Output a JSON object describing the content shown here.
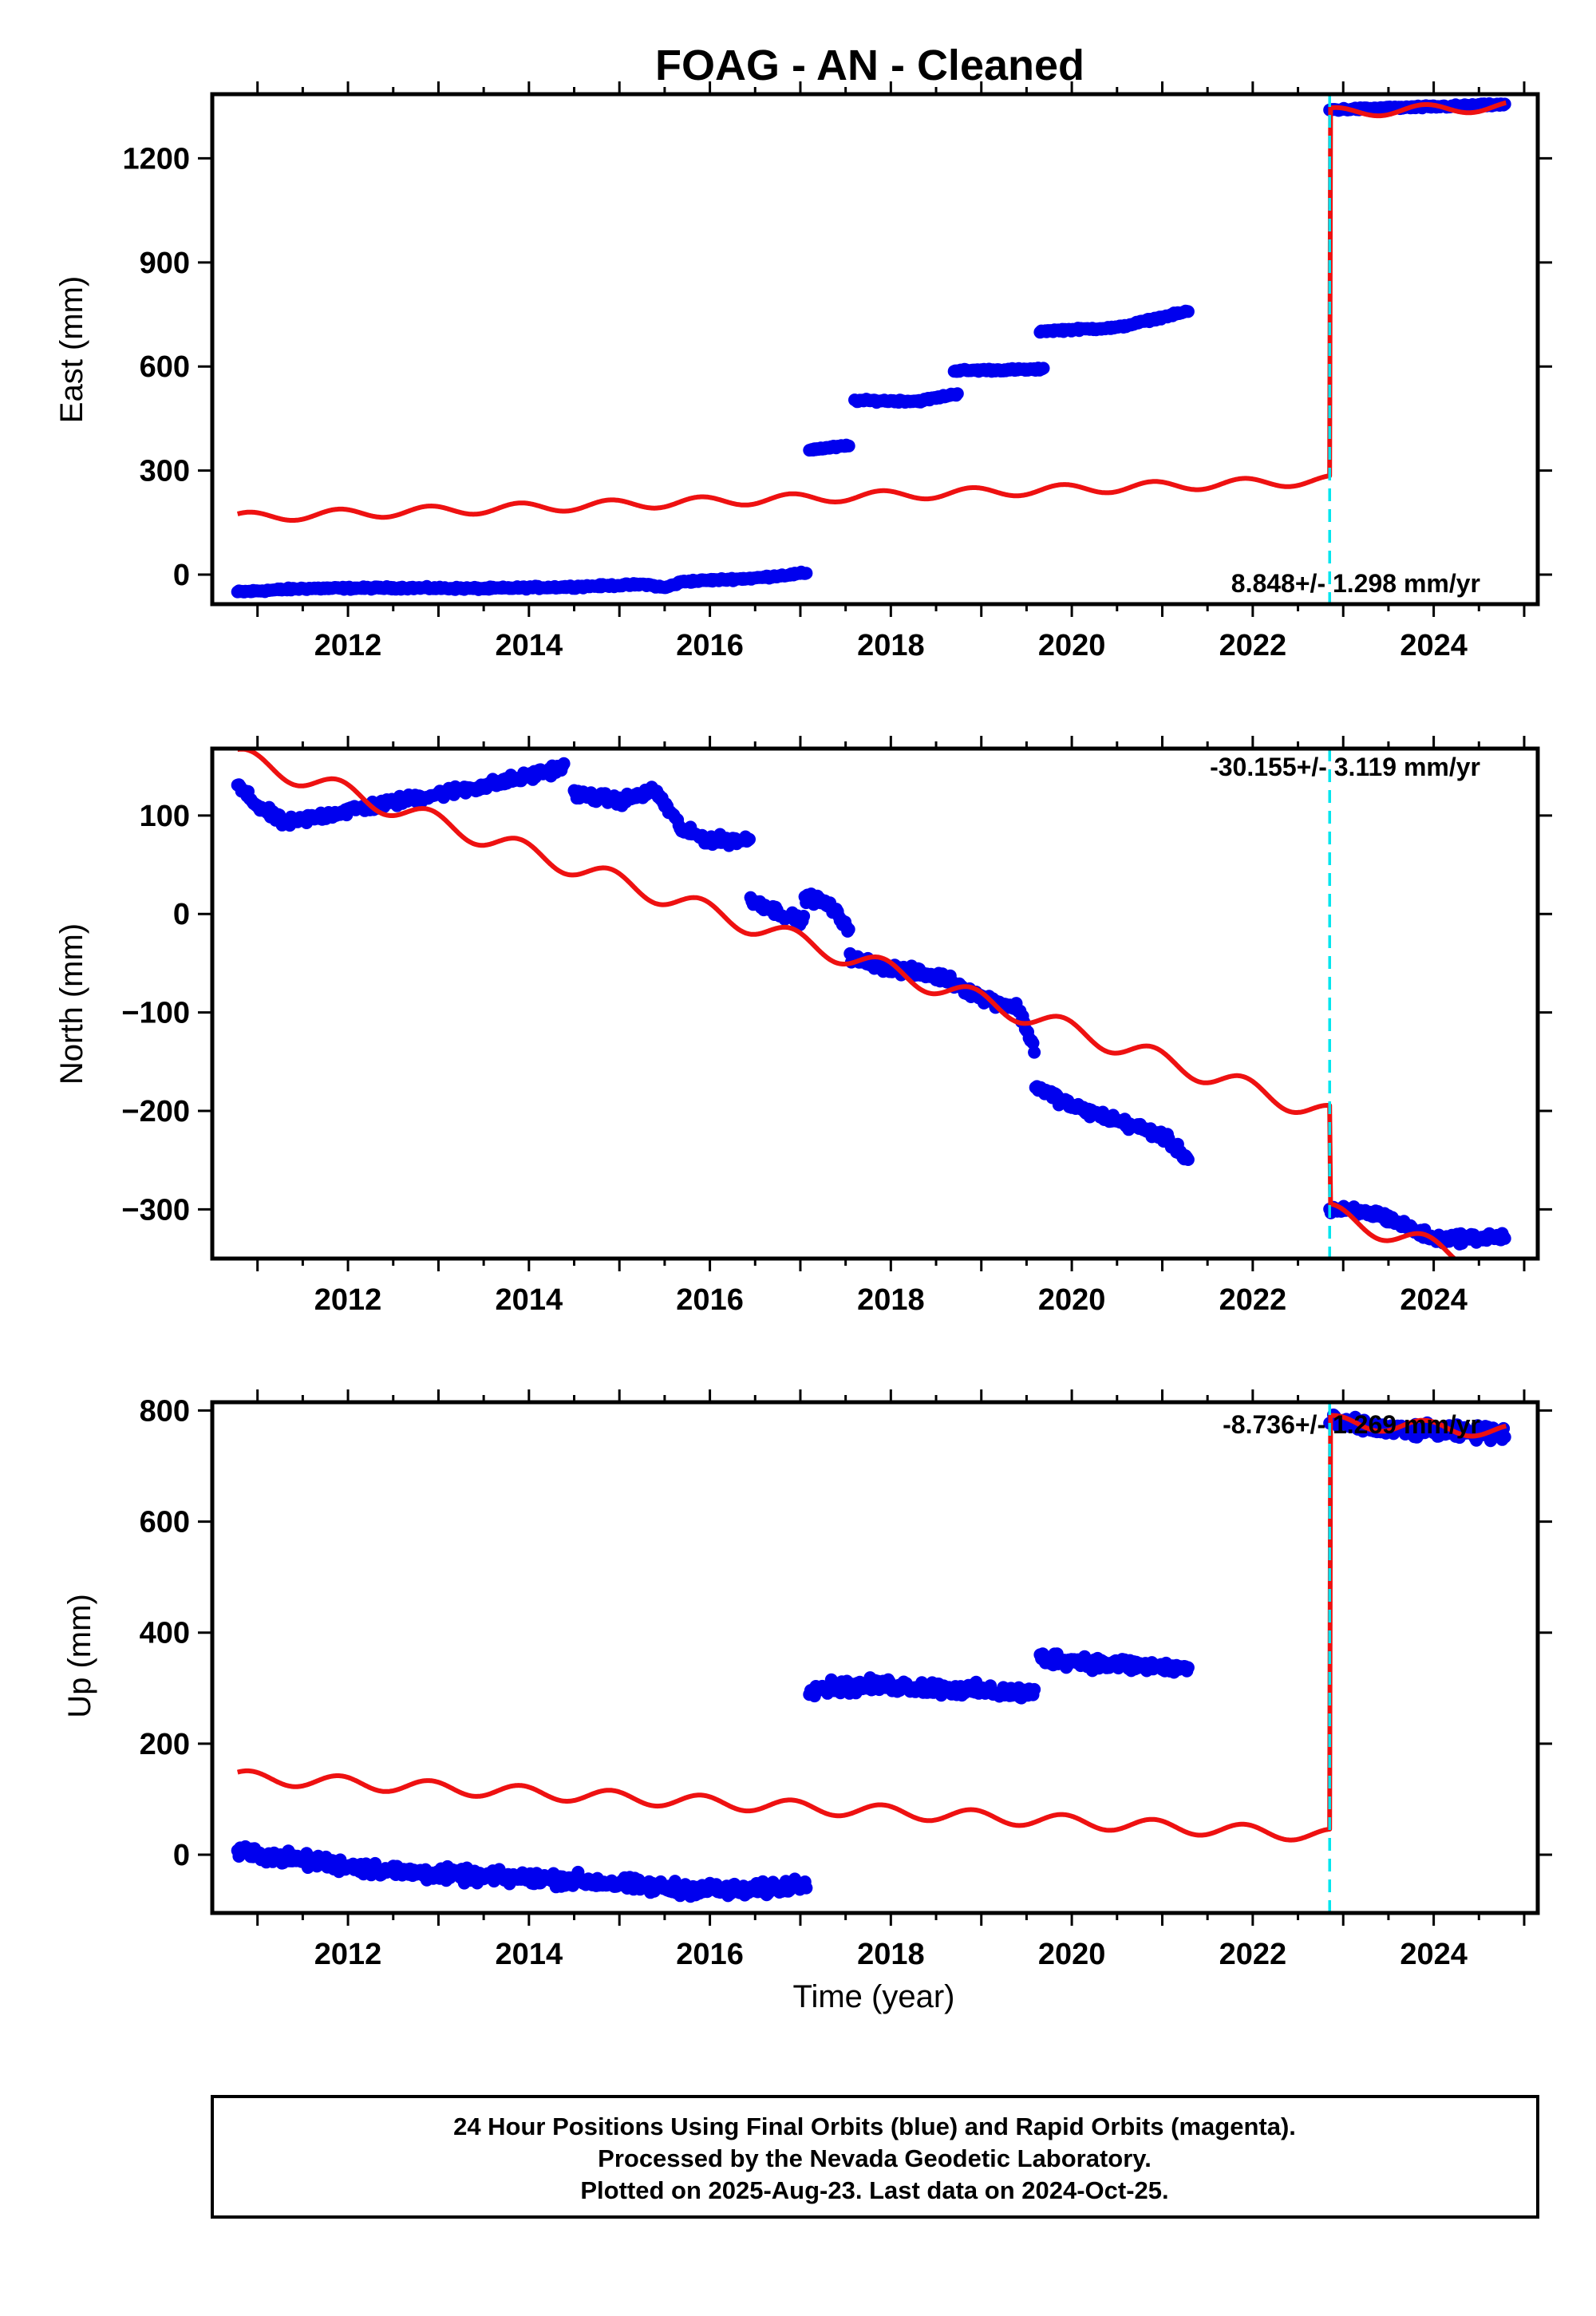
{
  "title": "FOAG  - AN - Cleaned",
  "footer": {
    "line1": "24 Hour Positions Using Final Orbits (blue) and Rapid Orbits (magenta).",
    "line2": "Processed by the Nevada Geodetic Laboratory.",
    "line3": "Plotted on 2025-Aug-23. Last data on 2024-Oct-25."
  },
  "colors": {
    "final": "#0000ee",
    "model": "#ee1111",
    "step": "#00e5ee",
    "frame": "#000000"
  },
  "chart_data": [
    {
      "type": "scatter",
      "component": "east",
      "ylabel": "East (mm)",
      "xlabel": "",
      "xlim": [
        2010.5,
        2025.15
      ],
      "ylim": [
        -85,
        1385
      ],
      "yticks": [
        0,
        300,
        600,
        900,
        1200
      ],
      "xticks": [
        2012,
        2014,
        2016,
        2018,
        2020,
        2022,
        2024
      ],
      "rate_label": "8.848+/- 1.298 mm/yr",
      "equipment_step": 2022.85,
      "final_segments": [
        {
          "x": [
            2010.78,
            2011.5,
            2012.5,
            2013.5,
            2014.5,
            2015.3,
            2015.5,
            2015.7,
            2016.5,
            2017.08
          ],
          "y": [
            -50,
            -40,
            -38,
            -40,
            -35,
            -28,
            -38,
            -20,
            -10,
            5
          ]
        },
        {
          "x": [
            2017.1,
            2017.55
          ],
          "y": [
            360,
            372
          ]
        },
        {
          "x": [
            2017.6,
            2018.3,
            2018.75
          ],
          "y": [
            502,
            500,
            522
          ]
        },
        {
          "x": [
            2018.7,
            2019.7
          ],
          "y": [
            588,
            592
          ]
        },
        {
          "x": [
            2019.65,
            2020.5,
            2021.3
          ],
          "y": [
            702,
            712,
            760
          ]
        },
        {
          "x": [
            2022.85,
            2023.5,
            2024.8
          ],
          "y": [
            1340,
            1345,
            1355
          ]
        }
      ],
      "model": {
        "intercept": 165,
        "slope": 8.848,
        "amplitude": 14,
        "step_year": 2022.85,
        "step_offset": 1060,
        "x_start": 2010.78,
        "x_end": 2024.8
      }
    },
    {
      "type": "scatter",
      "component": "north",
      "ylabel": "North (mm)",
      "xlabel": "",
      "xlim": [
        2010.5,
        2025.15
      ],
      "ylim": [
        -350,
        168
      ],
      "yticks": [
        -300,
        -200,
        -100,
        0,
        100
      ],
      "ytick_labels": [
        "−300",
        "−200",
        "−100",
        "0",
        "100"
      ],
      "xticks": [
        2012,
        2014,
        2016,
        2018,
        2020,
        2022,
        2024
      ],
      "rate_label": "-30.155+/- 3.119 mm/yr",
      "equipment_step": 2022.85,
      "final_segments": [
        {
          "x": [
            2010.78,
            2011.0,
            2011.3,
            2012.0,
            2013.0,
            2013.5,
            2014.0,
            2014.4
          ],
          "y": [
            130,
            110,
            92,
            105,
            122,
            130,
            140,
            150
          ]
        },
        {
          "x": [
            2014.5,
            2015.0,
            2015.4,
            2015.7,
            2016.0,
            2016.45
          ],
          "y": [
            122,
            115,
            125,
            85,
            75,
            75
          ]
        },
        {
          "x": [
            2016.45,
            2016.8,
            2017.05
          ],
          "y": [
            15,
            0,
            -8
          ]
        },
        {
          "x": [
            2017.05,
            2017.3,
            2017.55
          ],
          "y": [
            18,
            10,
            -15
          ]
        },
        {
          "x": [
            2017.55,
            2018.0,
            2018.6,
            2019.0,
            2019.4,
            2019.6
          ],
          "y": [
            -45,
            -55,
            -65,
            -85,
            -95,
            -140
          ]
        },
        {
          "x": [
            2019.6,
            2020.0,
            2020.5,
            2021.0,
            2021.3
          ],
          "y": [
            -175,
            -195,
            -210,
            -225,
            -250
          ]
        },
        {
          "x": [
            2022.85,
            2023.4,
            2024.0,
            2024.8
          ],
          "y": [
            -300,
            -305,
            -330,
            -328
          ]
        }
      ],
      "model": {
        "intercept": 160,
        "slope": -30.155,
        "amplitude": 10,
        "step_year": 2022.85,
        "step_offset": -100,
        "x_start": 2010.78,
        "x_end": 2024.8
      }
    },
    {
      "type": "scatter",
      "component": "up",
      "ylabel": "Up (mm)",
      "xlabel": "Time (year)",
      "xlim": [
        2010.5,
        2025.15
      ],
      "ylim": [
        -105,
        815
      ],
      "yticks": [
        0,
        200,
        400,
        600,
        800
      ],
      "xticks": [
        2012,
        2014,
        2016,
        2018,
        2020,
        2022,
        2024
      ],
      "rate_label": "-8.736+/- 1.269 mm/yr",
      "equipment_step": 2022.85,
      "final_segments": [
        {
          "x": [
            2010.78,
            2011.5,
            2012.5,
            2013.5,
            2014.5,
            2015.5,
            2016.5,
            2017.08
          ],
          "y": [
            5,
            -10,
            -30,
            -40,
            -45,
            -60,
            -65,
            -50
          ]
        },
        {
          "x": [
            2017.1,
            2018.0,
            2019.0,
            2019.6
          ],
          "y": [
            300,
            305,
            295,
            290
          ]
        },
        {
          "x": [
            2019.65,
            2020.3,
            2021.3
          ],
          "y": [
            355,
            345,
            335
          ]
        },
        {
          "x": [
            2022.85,
            2023.5,
            2024.0,
            2024.8
          ],
          "y": [
            780,
            765,
            762,
            758
          ]
        }
      ],
      "model": {
        "intercept": 140,
        "slope": -8.736,
        "amplitude": 12,
        "step_year": 2022.85,
        "step_offset": 745,
        "x_start": 2010.78,
        "x_end": 2024.8
      }
    }
  ]
}
